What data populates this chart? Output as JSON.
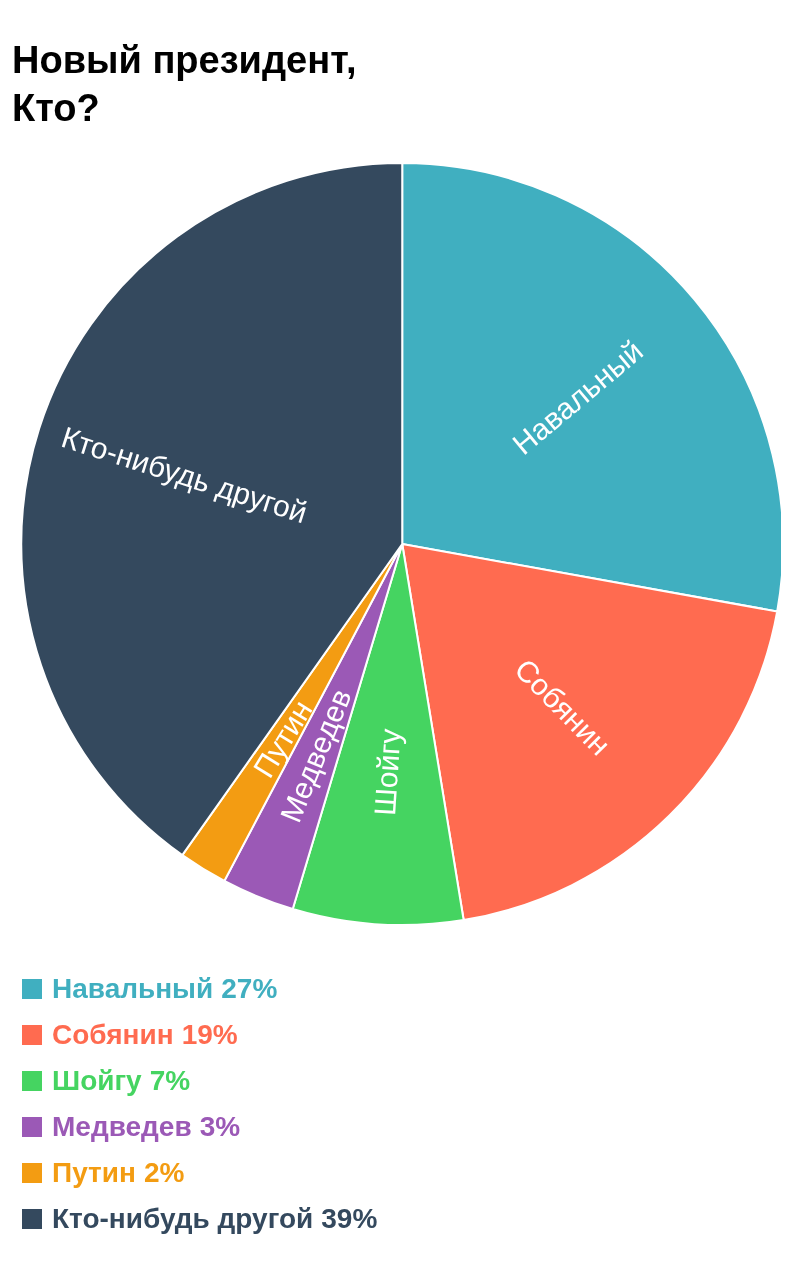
{
  "chart_data": {
    "type": "pie",
    "title": "Новый президент,\nКто?",
    "categories": [
      "Навальный",
      "Собянин",
      "Шойгу",
      "Медведев",
      "Путин",
      "Кто-нибудь другой"
    ],
    "values": [
      27,
      19,
      7,
      3,
      2,
      39
    ],
    "value_labels": [
      "27%",
      "19%",
      "7%",
      "3%",
      "2%",
      "39%"
    ],
    "colors": [
      "#40afc0",
      "#ff6b50",
      "#45d461",
      "#9b59b6",
      "#f39c12",
      "#34495e"
    ],
    "legend": "bottom"
  }
}
